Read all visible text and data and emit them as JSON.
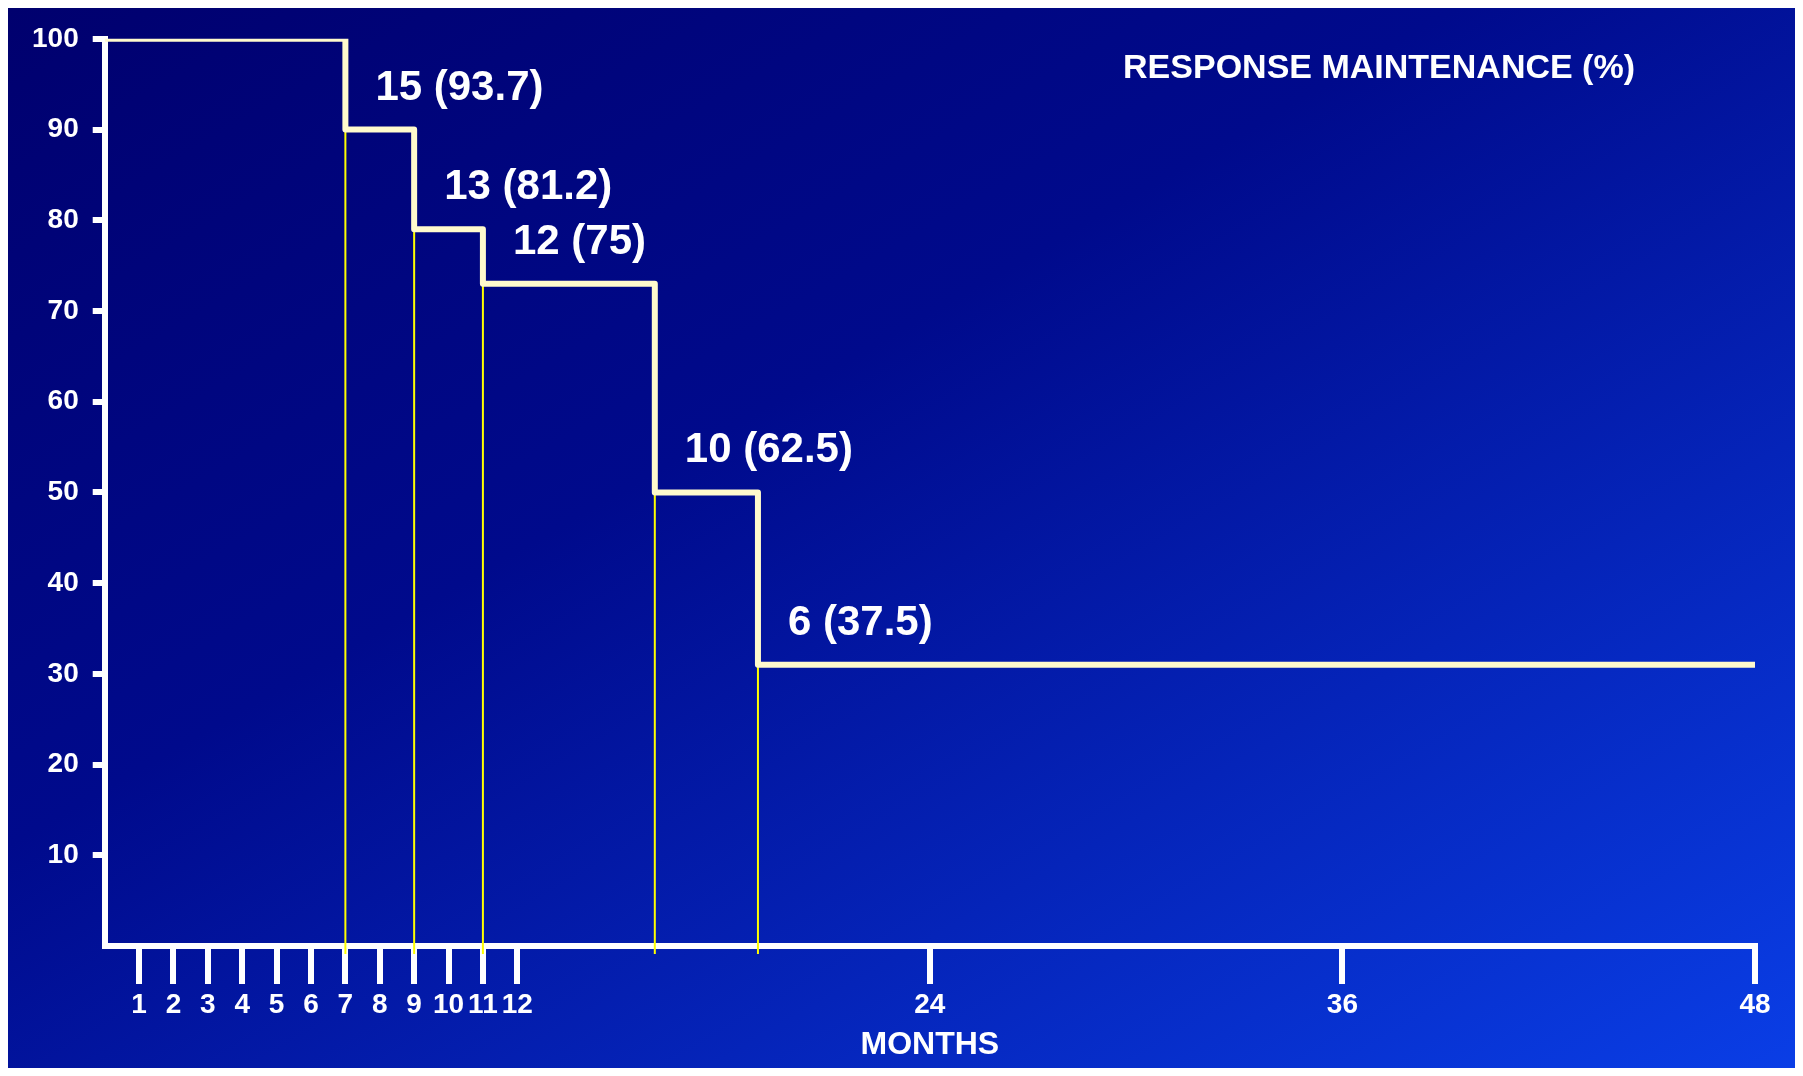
{
  "chart_data": {
    "type": "step",
    "title": "RESPONSE MAINTENANCE (%)",
    "xlabel": "MONTHS",
    "x": [
      0,
      7,
      9,
      11,
      16,
      19,
      48
    ],
    "series": [
      {
        "color": "#fffacd",
        "values": [
          100,
          90,
          79,
          73,
          50,
          31,
          31
        ]
      }
    ],
    "xlim": [
      0,
      48
    ],
    "xticks": [
      1,
      2,
      3,
      4,
      5,
      6,
      7,
      8,
      9,
      10,
      11,
      12,
      24,
      36,
      48
    ],
    "ylim": [
      0,
      100
    ],
    "yticks": [
      10,
      20,
      30,
      40,
      50,
      60,
      70,
      80,
      90,
      100
    ],
    "grid": false,
    "legend": false,
    "marker": "none",
    "line_style": "solid",
    "ref_lines": [
      {
        "axis": "x",
        "value": 7,
        "color": "#ffff00"
      },
      {
        "axis": "x",
        "value": 9,
        "color": "#ffff00"
      },
      {
        "axis": "x",
        "value": 11,
        "color": "#ffff00"
      },
      {
        "axis": "x",
        "value": 16,
        "color": "#ffff00"
      },
      {
        "axis": "x",
        "value": 19,
        "color": "#ffff00"
      }
    ],
    "annotations": [
      {
        "text": "15 (93.7)",
        "x": 7,
        "y": 90
      },
      {
        "text": "13 (81.2)",
        "x": 9,
        "y": 79
      },
      {
        "text": "12 (75)",
        "x": 11,
        "y": 73
      },
      {
        "text": "10 (62.5)",
        "x": 16,
        "y": 50
      },
      {
        "text": "6 (37.5)",
        "x": 19,
        "y": 31
      }
    ]
  }
}
